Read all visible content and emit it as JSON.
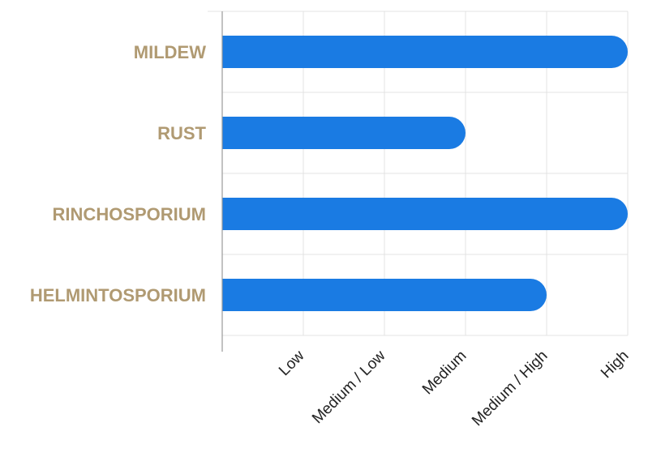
{
  "chart_data": {
    "type": "bar",
    "orientation": "horizontal",
    "categories": [
      "MILDEW",
      "RUST",
      "RINCHOSPORIUM",
      "HELMINTOSPORIUM"
    ],
    "series": [
      {
        "values": [
          5,
          3,
          5,
          4
        ]
      }
    ],
    "x_ticks": [
      "Low",
      "Medium / Low",
      "Medium",
      "Medium / High",
      "High"
    ],
    "xlim": [
      0,
      5
    ],
    "grid": true,
    "legend": "none",
    "title": "",
    "xlabel": "",
    "ylabel": "",
    "colors": {
      "bar": "#1a7be3",
      "category_label": "#b09a72",
      "grid": "#e3e3e3",
      "axis": "#9a9a9a",
      "tick_label": "#222222"
    }
  }
}
